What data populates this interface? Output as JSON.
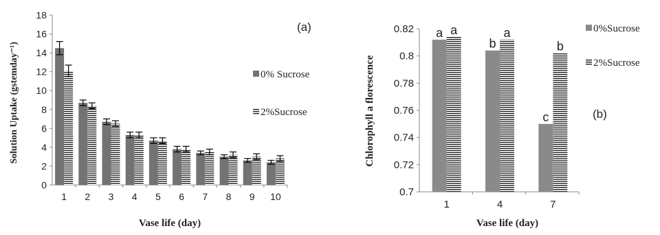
{
  "chart_data": [
    {
      "type": "bar",
      "panel_label": "(a)",
      "xlabel": "Vase life (day)",
      "ylabel": "Solution Uptake (gstemday⁻¹)",
      "categories": [
        "1",
        "2",
        "3",
        "4",
        "5",
        "6",
        "7",
        "8",
        "9",
        "10"
      ],
      "ylim": [
        0,
        18
      ],
      "yticks": [
        "0",
        "2",
        "4",
        "6",
        "8",
        "10",
        "12",
        "14",
        "16",
        "18"
      ],
      "series": [
        {
          "name": "0% Sucrose",
          "values": [
            14.5,
            8.7,
            6.7,
            5.3,
            4.7,
            3.8,
            3.4,
            3.0,
            2.6,
            2.4
          ],
          "errors": [
            0.7,
            0.3,
            0.3,
            0.3,
            0.3,
            0.3,
            0.2,
            0.2,
            0.2,
            0.2
          ],
          "color": "#737373",
          "pattern": "solid"
        },
        {
          "name": "2%Sucrose",
          "values": [
            12.1,
            8.4,
            6.5,
            5.3,
            4.7,
            3.8,
            3.5,
            3.2,
            3.0,
            2.8
          ],
          "errors": [
            0.6,
            0.3,
            0.3,
            0.3,
            0.3,
            0.3,
            0.3,
            0.3,
            0.3,
            0.3
          ],
          "color": "#222222",
          "pattern": "horizontal-lines"
        }
      ],
      "legend_placement": "right"
    },
    {
      "type": "bar",
      "panel_label": "(b)",
      "xlabel": "Vase life (day)",
      "ylabel": "Chlorophyll  a florescence",
      "categories": [
        "1",
        "4",
        "7"
      ],
      "ylim": [
        0.7,
        0.82
      ],
      "yticks": [
        "0.7",
        "0.72",
        "0.74",
        "0.76",
        "0.78",
        "0.8",
        "0.82"
      ],
      "series": [
        {
          "name": "0%Sucrose",
          "values": [
            0.812,
            0.804,
            0.75
          ],
          "labels": [
            "a",
            "b",
            "c"
          ],
          "color": "#8a8a8a",
          "pattern": "solid"
        },
        {
          "name": "2%Sucrose",
          "values": [
            0.814,
            0.812,
            0.802
          ],
          "labels": [
            "a",
            "a",
            "b"
          ],
          "color": "#222222",
          "pattern": "horizontal-lines"
        }
      ],
      "legend_placement": "right"
    }
  ]
}
